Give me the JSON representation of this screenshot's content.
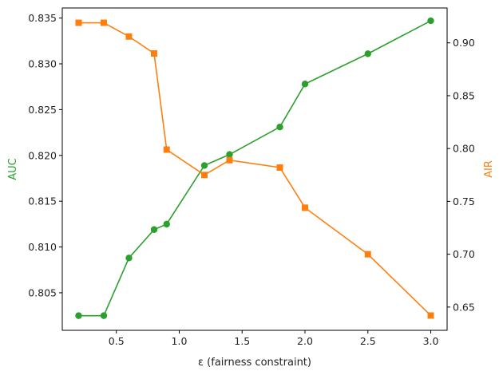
{
  "chart_data": {
    "type": "line",
    "title": "",
    "xlabel": "ε (fairness constraint)",
    "x": [
      0.2,
      0.4,
      0.6,
      0.8,
      0.9,
      1.2,
      1.4,
      1.8,
      2.0,
      2.5,
      3.0
    ],
    "xlim": [
      0.07,
      3.13
    ],
    "xticks": [
      0.5,
      1.0,
      1.5,
      2.0,
      2.5,
      3.0
    ],
    "xtick_labels": [
      "0.5",
      "1.0",
      "1.5",
      "2.0",
      "2.5",
      "3.0"
    ],
    "grid": false,
    "legend": "none",
    "series": [
      {
        "axis": "left",
        "marker": "circle",
        "color": "#2ca02c",
        "values": [
          0.8025,
          0.8025,
          0.8088,
          0.8119,
          0.8125,
          0.8189,
          0.8201,
          0.8231,
          0.8278,
          0.8311,
          0.8347
        ]
      },
      {
        "axis": "right",
        "marker": "square",
        "color": "#ff7f0e",
        "values": [
          0.919,
          0.919,
          0.906,
          0.89,
          0.799,
          0.775,
          0.789,
          0.782,
          0.744,
          0.7,
          0.642
        ]
      }
    ],
    "y_left": {
      "label": "AUC",
      "color": "#2ca02c",
      "lim": [
        0.8009,
        0.8361
      ],
      "ticks": [
        0.805,
        0.81,
        0.815,
        0.82,
        0.825,
        0.83,
        0.835
      ],
      "tick_labels": [
        "0.805",
        "0.810",
        "0.815",
        "0.820",
        "0.825",
        "0.830",
        "0.835"
      ]
    },
    "y_right": {
      "label": "AIR",
      "color": "#ff7f0e",
      "lim": [
        0.628,
        0.933
      ],
      "ticks": [
        0.65,
        0.7,
        0.75,
        0.8,
        0.85,
        0.9
      ],
      "tick_labels": [
        "0.65",
        "0.70",
        "0.75",
        "0.80",
        "0.85",
        "0.90"
      ]
    }
  }
}
